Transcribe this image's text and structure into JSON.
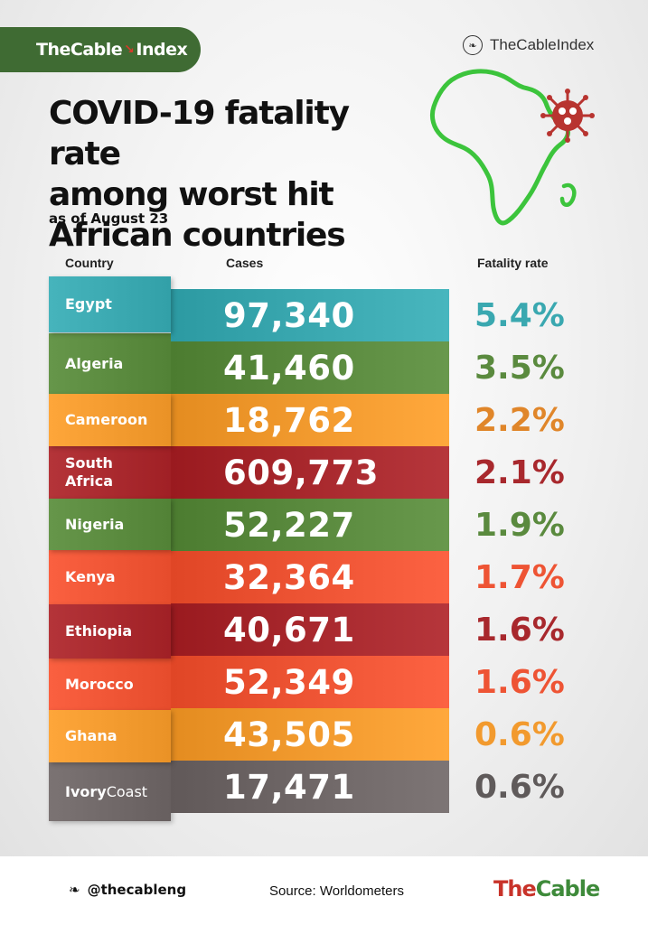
{
  "brand": {
    "name": "TheCable",
    "suffix": "Index",
    "twitter_handle_top": "TheCableIndex",
    "twitter_handle_bottom": "@thecableng",
    "logo_the": "The",
    "logo_cable": "Cable"
  },
  "title_lines": [
    "COVID-19 fatality rate",
    "among worst hit",
    "African countries"
  ],
  "subtitle": "as of August 23",
  "headers": {
    "country": "Country",
    "cases": "Cases",
    "rate": "Fatality rate"
  },
  "source": "Source: Worldometers",
  "icons": [
    "twitter-bird-icon",
    "africa-map-icon",
    "virus-icon"
  ],
  "colors": {
    "teal": "#3aa8b0",
    "green": "#5a8a3e",
    "orange": "#f29a2e",
    "darkred": "#a8282d",
    "red": "#ee5434",
    "grey": "#6f6767",
    "africa_outline": "#3cc43c",
    "virus": "#b83430"
  },
  "chart_data": {
    "type": "table",
    "columns": [
      "Country",
      "Cases",
      "Fatality rate"
    ],
    "rows": [
      {
        "country": "Egypt",
        "cases": "97,340",
        "rate": "5.4%",
        "color": "#3aa8b0",
        "rate_color": "#3aa8b0"
      },
      {
        "country": "Algeria",
        "cases": "41,460",
        "rate": "3.5%",
        "color": "#5a8a3e",
        "rate_color": "#5a8a3e"
      },
      {
        "country": "Cameroon",
        "cases": "18,762",
        "rate": "2.2%",
        "color": "#f29a2e",
        "rate_color": "#e0862a"
      },
      {
        "country_lines": [
          "South",
          "Africa"
        ],
        "cases": "609,773",
        "rate": "2.1%",
        "color": "#a8282d",
        "rate_color": "#a8282d"
      },
      {
        "country": "Nigeria",
        "cases": "52,227",
        "rate": "1.9%",
        "color": "#5a8a3e",
        "rate_color": "#5a8a3e"
      },
      {
        "country": "Kenya",
        "cases": "32,364",
        "rate": "1.7%",
        "color": "#ee5434",
        "rate_color": "#ee5434"
      },
      {
        "country": "Ethiopia",
        "cases": "40,671",
        "rate": "1.6%",
        "color": "#a8282d",
        "rate_color": "#a8282d"
      },
      {
        "country": "Morocco",
        "cases": "52,349",
        "rate": "1.6%",
        "color": "#ee5434",
        "rate_color": "#ee5434"
      },
      {
        "country": "Ghana",
        "cases": "43,505",
        "rate": "0.6%",
        "color": "#f29a2e",
        "rate_color": "#f29a2e"
      },
      {
        "country_parts": [
          "Ivory",
          "Coast"
        ],
        "cases": "17,471",
        "rate": "0.6%",
        "color": "#6f6767",
        "rate_color": "#5f5a5a"
      }
    ]
  }
}
